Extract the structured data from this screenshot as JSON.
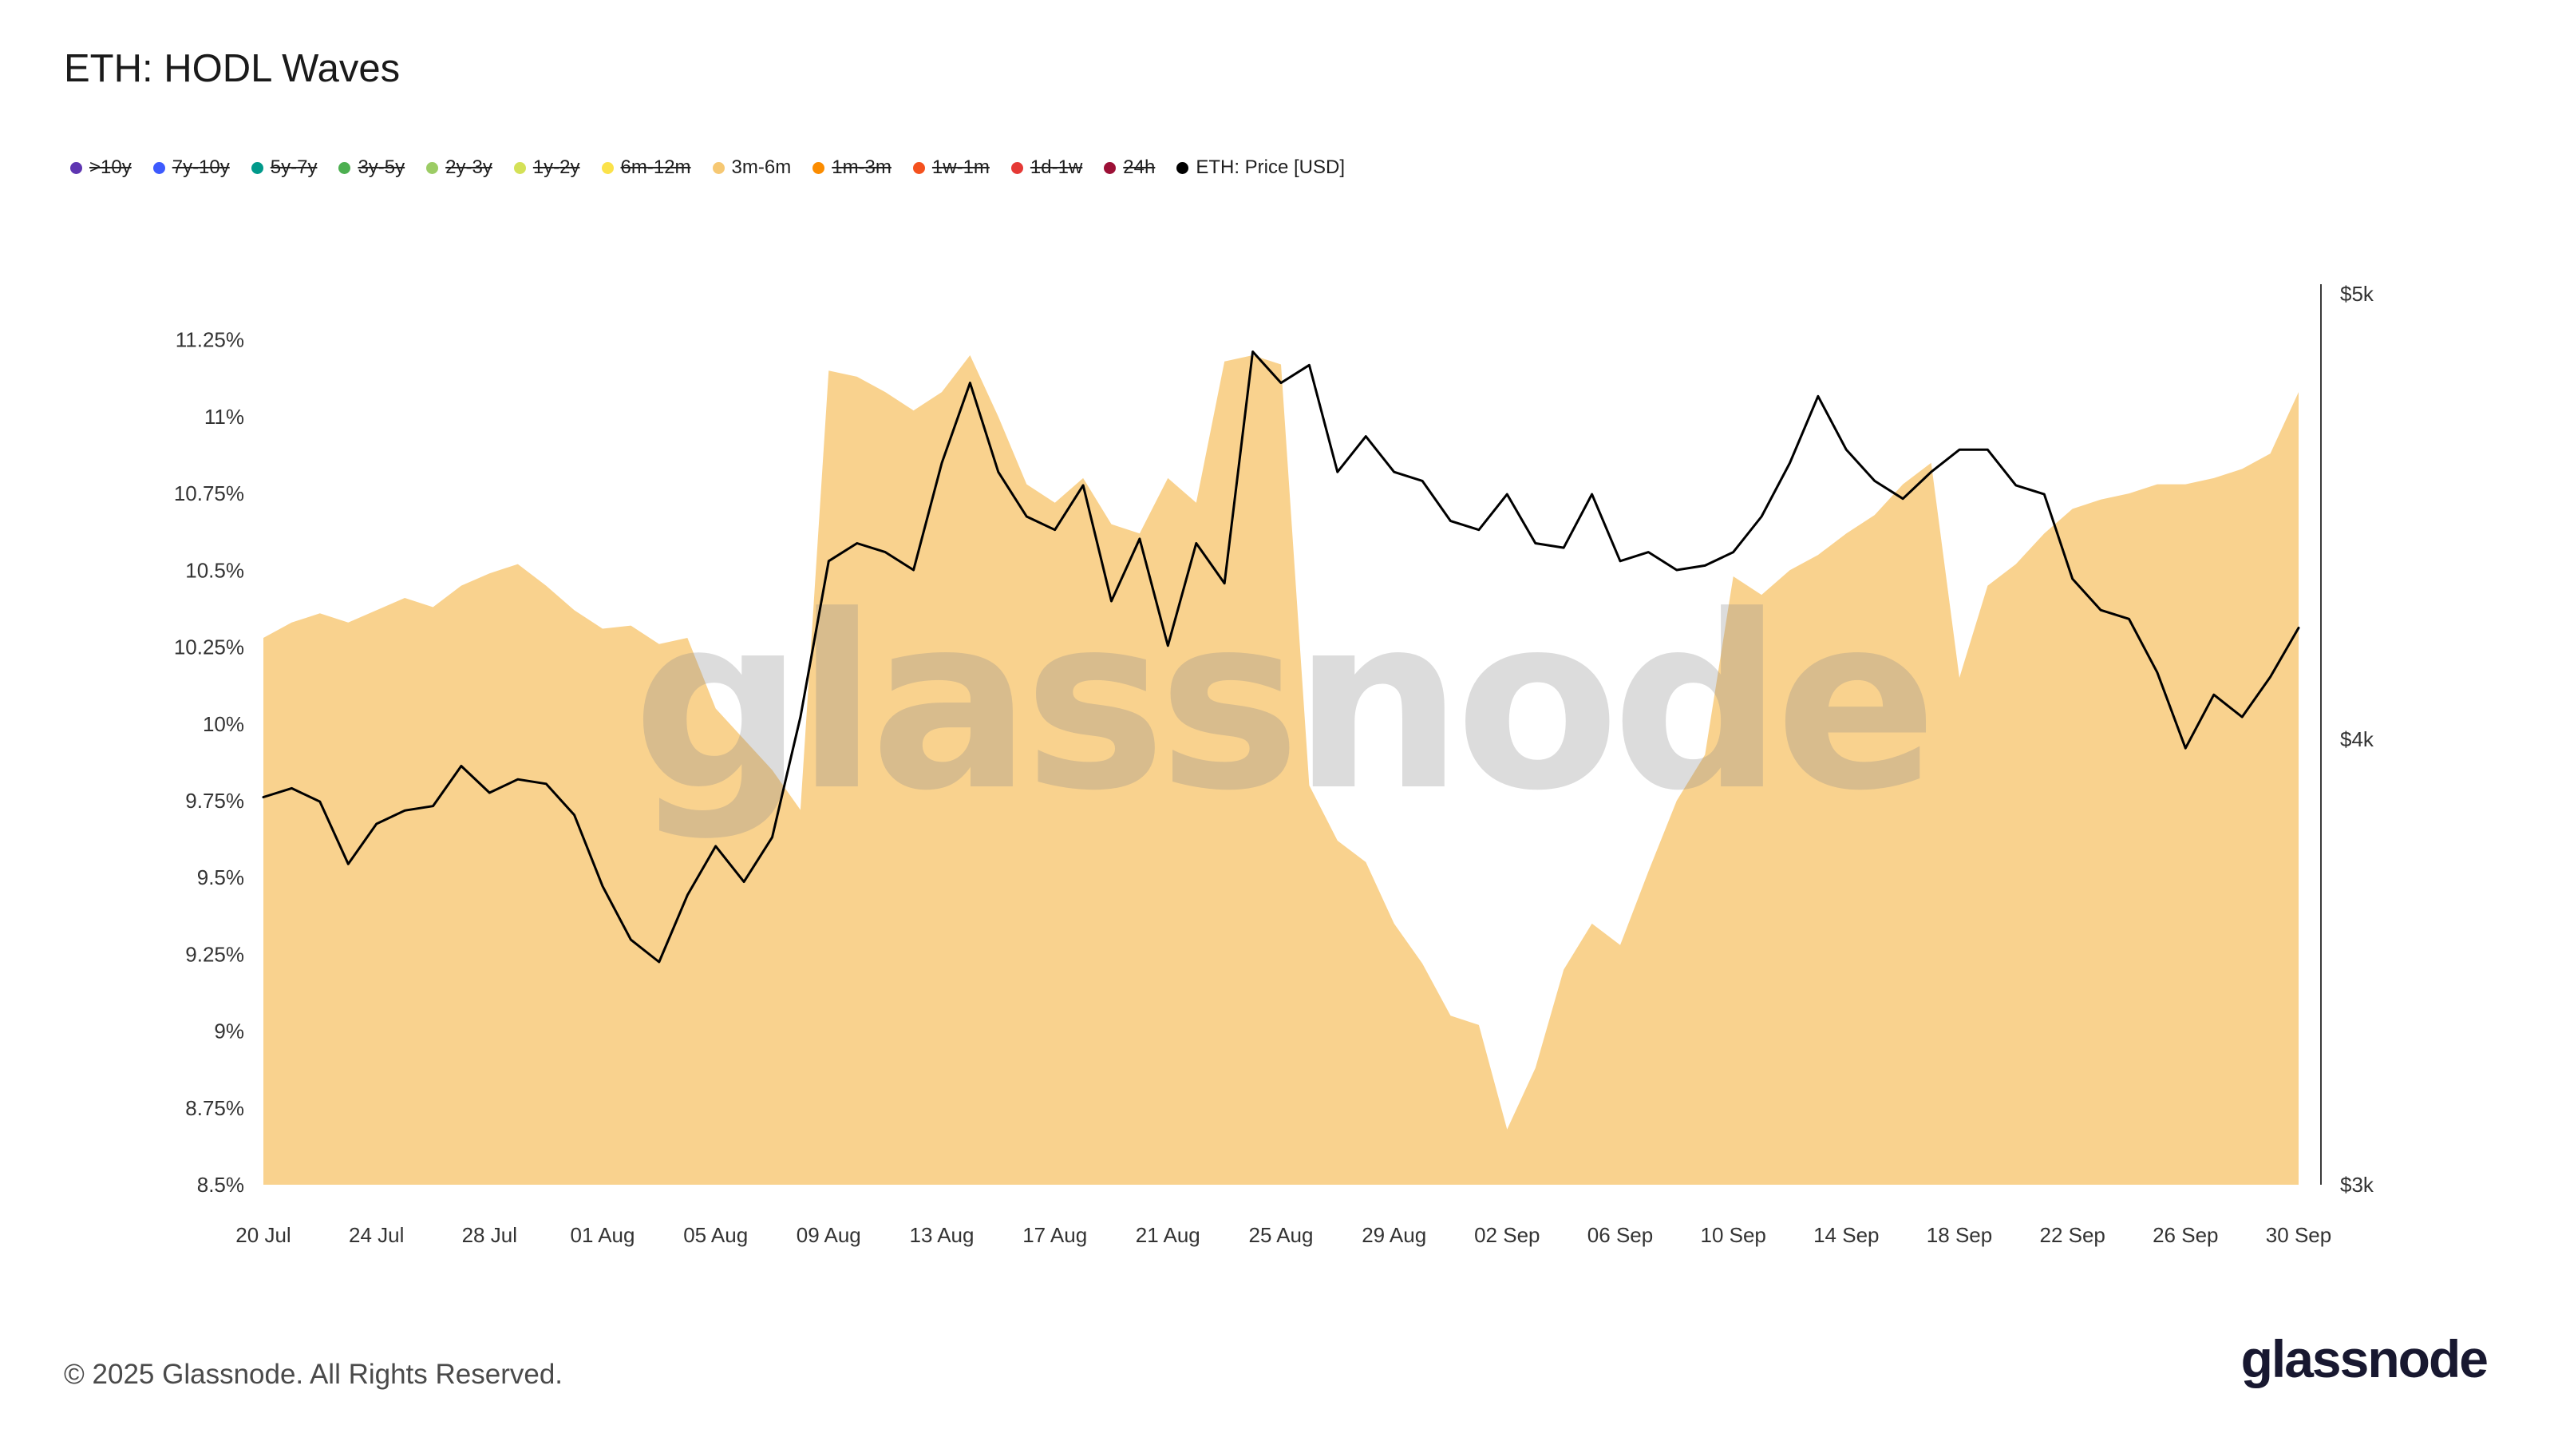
{
  "title": "ETH: HODL Waves",
  "watermark": "glassnode",
  "footer": {
    "copyright": "© 2025 Glassnode. All Rights Reserved.",
    "brand": "glassnode"
  },
  "legend": {
    "items": [
      {
        "label": ">10y",
        "color": "#5e35b1",
        "active": false
      },
      {
        "label": "7y-10y",
        "color": "#3d5afe",
        "active": false
      },
      {
        "label": "5y-7y",
        "color": "#00998a",
        "active": false
      },
      {
        "label": "3y-5y",
        "color": "#4caf50",
        "active": false
      },
      {
        "label": "2y-3y",
        "color": "#9ccc65",
        "active": false
      },
      {
        "label": "1y-2y",
        "color": "#d4e157",
        "active": false
      },
      {
        "label": "6m-12m",
        "color": "#fbe24a",
        "active": false
      },
      {
        "label": "3m-6m",
        "color": "#f6c873",
        "active": true
      },
      {
        "label": "1m-3m",
        "color": "#fb8c00",
        "active": false
      },
      {
        "label": "1w-1m",
        "color": "#f4511e",
        "active": false
      },
      {
        "label": "1d-1w",
        "color": "#e53935",
        "active": false
      },
      {
        "label": "24h",
        "color": "#9c1036",
        "active": false
      },
      {
        "label": "ETH: Price [USD]",
        "color": "#000000",
        "active": true
      }
    ]
  },
  "chart_data": {
    "type": "area",
    "title": "ETH: HODL Waves",
    "resolution": "1d",
    "x_range": [
      "20 Jul",
      "30 Sep"
    ],
    "grid": false,
    "legend_position": "top",
    "x_ticks": [
      {
        "label": "20 Jul",
        "i": 0
      },
      {
        "label": "24 Jul",
        "i": 4
      },
      {
        "label": "28 Jul",
        "i": 8
      },
      {
        "label": "01 Aug",
        "i": 12
      },
      {
        "label": "05 Aug",
        "i": 16
      },
      {
        "label": "09 Aug",
        "i": 20
      },
      {
        "label": "13 Aug",
        "i": 24
      },
      {
        "label": "17 Aug",
        "i": 28
      },
      {
        "label": "21 Aug",
        "i": 32
      },
      {
        "label": "25 Aug",
        "i": 36
      },
      {
        "label": "29 Aug",
        "i": 40
      },
      {
        "label": "02 Sep",
        "i": 44
      },
      {
        "label": "06 Sep",
        "i": 48
      },
      {
        "label": "10 Sep",
        "i": 52
      },
      {
        "label": "14 Sep",
        "i": 56
      },
      {
        "label": "18 Sep",
        "i": 60
      },
      {
        "label": "22 Sep",
        "i": 64
      },
      {
        "label": "26 Sep",
        "i": 68
      },
      {
        "label": "30 Sep",
        "i": 72
      }
    ],
    "y_left": {
      "min": 8.5,
      "max": 11.4,
      "unit": "%",
      "ticks": [
        {
          "label": "11.25%",
          "v": 11.25
        },
        {
          "label": "11%",
          "v": 11.0
        },
        {
          "label": "10.75%",
          "v": 10.75
        },
        {
          "label": "10.5%",
          "v": 10.5
        },
        {
          "label": "10.25%",
          "v": 10.25
        },
        {
          "label": "10%",
          "v": 10.0
        },
        {
          "label": "9.75%",
          "v": 9.75
        },
        {
          "label": "9.5%",
          "v": 9.5
        },
        {
          "label": "9.25%",
          "v": 9.25
        },
        {
          "label": "9%",
          "v": 9.0
        },
        {
          "label": "8.75%",
          "v": 8.75
        },
        {
          "label": "8.5%",
          "v": 8.5
        }
      ]
    },
    "y_right": {
      "min": 3,
      "max": 5,
      "unit": "USD (k)",
      "ticks": [
        {
          "label": "$5k",
          "v": 5
        },
        {
          "label": "$4k",
          "v": 4
        },
        {
          "label": "$3k",
          "v": 3
        }
      ]
    },
    "series": [
      {
        "name": "3m-6m",
        "type": "area",
        "axis": "left",
        "unit": "%",
        "color": "#F9D28E",
        "values": [
          10.28,
          10.33,
          10.36,
          10.33,
          10.37,
          10.41,
          10.38,
          10.45,
          10.49,
          10.52,
          10.45,
          10.37,
          10.31,
          10.32,
          10.26,
          10.28,
          10.05,
          9.95,
          9.85,
          9.72,
          11.15,
          11.13,
          11.08,
          11.02,
          11.08,
          11.2,
          11.0,
          10.78,
          10.72,
          10.8,
          10.65,
          10.62,
          10.8,
          10.72,
          11.18,
          11.2,
          11.17,
          9.8,
          9.62,
          9.55,
          9.35,
          9.22,
          9.05,
          9.02,
          8.68,
          8.88,
          9.2,
          9.35,
          9.28,
          9.52,
          9.75,
          9.9,
          10.48,
          10.42,
          10.5,
          10.55,
          10.62,
          10.68,
          10.78,
          10.85,
          10.15,
          10.45,
          10.52,
          10.62,
          10.7,
          10.73,
          10.75,
          10.78,
          10.78,
          10.8,
          10.83,
          10.88,
          11.08
        ]
      },
      {
        "name": "ETH: Price [USD]",
        "type": "line",
        "axis": "right",
        "unit": "USD (k)",
        "color": "#000000",
        "values": [
          3.87,
          3.89,
          3.86,
          3.72,
          3.81,
          3.84,
          3.85,
          3.94,
          3.88,
          3.91,
          3.9,
          3.83,
          3.67,
          3.55,
          3.5,
          3.65,
          3.76,
          3.68,
          3.78,
          4.05,
          4.4,
          4.44,
          4.42,
          4.38,
          4.62,
          4.8,
          4.6,
          4.5,
          4.47,
          4.57,
          4.31,
          4.45,
          4.21,
          4.44,
          4.35,
          4.87,
          4.8,
          4.84,
          4.6,
          4.68,
          4.6,
          4.58,
          4.49,
          4.47,
          4.55,
          4.44,
          4.43,
          4.55,
          4.4,
          4.42,
          4.38,
          4.39,
          4.42,
          4.5,
          4.62,
          4.77,
          4.65,
          4.58,
          4.54,
          4.6,
          4.65,
          4.65,
          4.57,
          4.55,
          4.36,
          4.29,
          4.27,
          4.15,
          3.98,
          4.1,
          4.05,
          4.14,
          4.25
        ]
      }
    ]
  }
}
